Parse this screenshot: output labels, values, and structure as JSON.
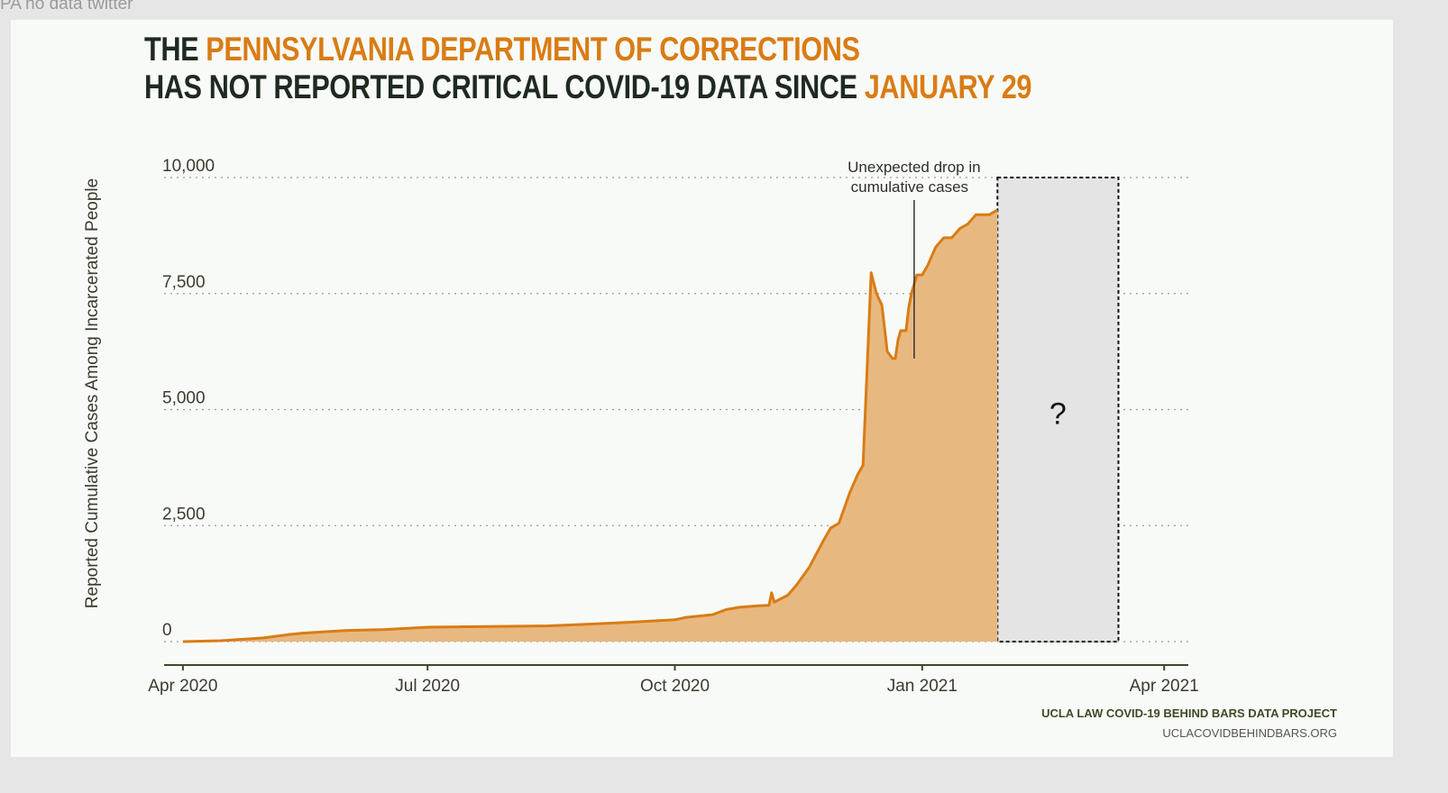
{
  "window": {
    "label": "PA no data twitter"
  },
  "headline": {
    "line1_a": "THE ",
    "line1_b": "PENNSYLVANIA DEPARTMENT OF CORRECTIONS",
    "line2_a": "HAS NOT REPORTED CRITICAL COVID-19 DATA SINCE ",
    "line2_b": "JANUARY 29"
  },
  "credit": {
    "line1": "UCLA LAW COVID-19 BEHIND BARS DATA PROJECT",
    "line2": "UCLACOVIDBEHINDBARS.ORG"
  },
  "colors": {
    "accent": "#d97c14",
    "fill": "#e8b881",
    "unknown_box": "#e3e4e3",
    "title_dark": "#1e2a1f"
  },
  "chart_data": {
    "type": "area",
    "ylabel": "Reported Cumulative Cases Among Incarcerated People",
    "ylim": [
      0,
      10000
    ],
    "yticks": [
      0,
      2500,
      5000,
      7500,
      10000
    ],
    "ytick_labels": [
      "0",
      "2,500",
      "5,000",
      "7,500",
      "10,000"
    ],
    "xlim": [
      "2020-03-25",
      "2021-04-10"
    ],
    "xticks": [
      "2020-04-01",
      "2020-07-01",
      "2020-10-01",
      "2021-01-01",
      "2021-04-01"
    ],
    "xtick_labels": [
      "Apr 2020",
      "Jul 2020",
      "Oct 2020",
      "Jan 2021",
      "Apr 2021"
    ],
    "grid": "horizontal dotted",
    "series": [
      {
        "x": [
          "2020-04-01",
          "2020-04-15",
          "2020-05-01",
          "2020-05-10",
          "2020-05-15",
          "2020-05-20",
          "2020-06-01",
          "2020-06-15",
          "2020-07-01",
          "2020-07-15",
          "2020-08-01",
          "2020-08-15",
          "2020-09-01",
          "2020-09-15",
          "2020-10-01",
          "2020-10-05",
          "2020-10-15",
          "2020-10-20",
          "2020-10-25",
          "2020-11-01",
          "2020-11-05",
          "2020-11-06",
          "2020-11-07",
          "2020-11-12",
          "2020-11-15",
          "2020-11-20",
          "2020-11-25",
          "2020-11-28",
          "2020-12-01",
          "2020-12-05",
          "2020-12-08",
          "2020-12-10",
          "2020-12-13",
          "2020-12-15",
          "2020-12-17",
          "2020-12-19",
          "2020-12-21",
          "2020-12-22",
          "2020-12-23",
          "2020-12-24",
          "2020-12-25",
          "2020-12-26",
          "2020-12-27",
          "2020-12-28",
          "2020-12-29",
          "2020-12-30",
          "2021-01-01",
          "2021-01-03",
          "2021-01-06",
          "2021-01-09",
          "2021-01-12",
          "2021-01-15",
          "2021-01-18",
          "2021-01-21",
          "2021-01-23",
          "2021-01-26",
          "2021-01-29"
        ],
        "values": [
          0,
          20,
          80,
          150,
          180,
          200,
          240,
          260,
          310,
          320,
          330,
          340,
          380,
          420,
          470,
          520,
          580,
          690,
          740,
          770,
          780,
          1050,
          850,
          1000,
          1200,
          1600,
          2150,
          2450,
          2550,
          3200,
          3600,
          3800,
          7950,
          7500,
          7250,
          6250,
          6100,
          6100,
          6500,
          6700,
          6700,
          6700,
          7200,
          7500,
          7700,
          7900,
          7900,
          8100,
          8500,
          8700,
          8700,
          8900,
          9000,
          9200,
          9200,
          9200,
          9300
        ]
      }
    ],
    "unknown_period": {
      "start": "2021-01-29",
      "end": "2021-03-15",
      "label": "?"
    },
    "annotations": [
      {
        "text_line1": "Unexpected drop in",
        "text_line2": "cumulative cases",
        "x": "2020-12-29",
        "y": 6100
      }
    ]
  }
}
